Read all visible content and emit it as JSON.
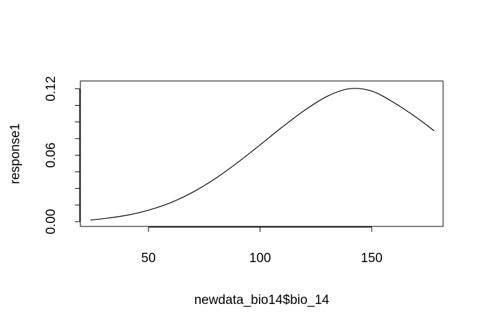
{
  "chart_data": {
    "type": "line",
    "xlabel": "newdata_bio14$bio_14",
    "ylabel": "response1",
    "xlim": [
      19.5,
      182
    ],
    "ylim": [
      -0.0043,
      0.127
    ],
    "x_ticks": [
      50,
      100,
      150
    ],
    "x_tick_labels": [
      "50",
      "100",
      "150"
    ],
    "y_ticks": [
      0.0,
      0.015,
      0.03,
      0.045,
      0.06,
      0.075,
      0.09,
      0.105,
      0.12
    ],
    "y_tick_labels": [
      "0.00",
      "",
      "",
      "",
      "0.06",
      "",
      "",
      "",
      "0.12"
    ],
    "grid": false,
    "series": [
      {
        "color": "#000000",
        "x": [
          24,
          30,
          40,
          50,
          60,
          70,
          80,
          90,
          100,
          110,
          120,
          130,
          140,
          150,
          160,
          170,
          178
        ],
        "y": [
          0.0015,
          0.0028,
          0.0057,
          0.0104,
          0.0172,
          0.0268,
          0.039,
          0.0535,
          0.0693,
          0.0855,
          0.1006,
          0.1131,
          0.12,
          0.1179,
          0.1074,
          0.0941,
          0.082
        ]
      }
    ]
  }
}
